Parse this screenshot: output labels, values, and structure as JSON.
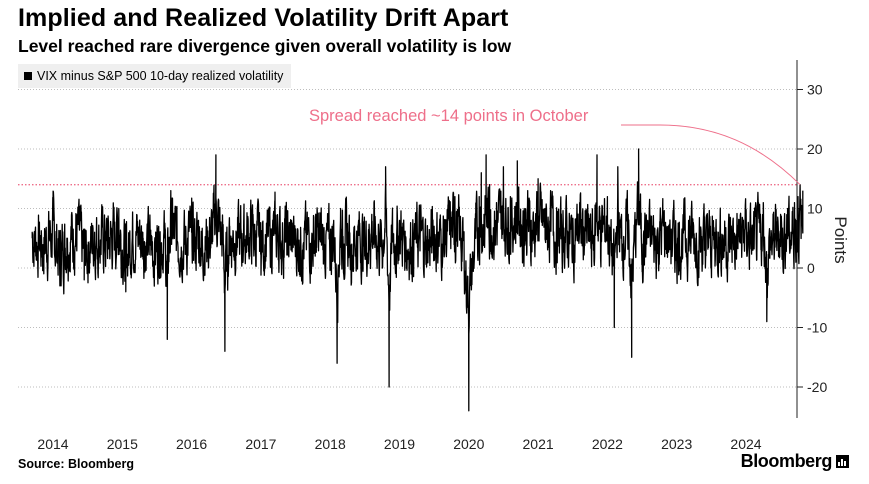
{
  "chart_data": {
    "type": "line",
    "title": "Implied and Realized Volatility Drift Apart",
    "subtitle": "Level reached rare divergence given overall volatility is low",
    "ylabel": "Points",
    "xlabel": "",
    "ylim": [
      -25,
      35
    ],
    "yticks": [
      30,
      20,
      10,
      0,
      -10,
      -20
    ],
    "xlim": [
      2013.7,
      2024.95
    ],
    "xticks": [
      "2014",
      "2015",
      "2016",
      "2017",
      "2018",
      "2019",
      "2020",
      "2021",
      "2022",
      "2023",
      "2024"
    ],
    "grid": "horizontal dotted",
    "legend": {
      "placement": "top-left"
    },
    "series": [
      {
        "name": "VIX minus S&P 500 10-day realized volatility",
        "color": "#000000",
        "x": [
          2013.7,
          2013.85,
          2014.0,
          2014.1,
          2014.2,
          2014.35,
          2014.45,
          2014.6,
          2014.8,
          2014.95,
          2015.0,
          2015.05,
          2015.1,
          2015.15,
          2015.3,
          2015.45,
          2015.6,
          2015.65,
          2015.7,
          2015.75,
          2015.9,
          2016.0,
          2016.05,
          2016.1,
          2016.15,
          2016.3,
          2016.35,
          2016.45,
          2016.48,
          2016.55,
          2016.7,
          2016.85,
          2017.0,
          2017.2,
          2017.4,
          2017.6,
          2017.8,
          2018.0,
          2018.05,
          2018.1,
          2018.15,
          2018.2,
          2018.25,
          2018.3,
          2018.4,
          2018.5,
          2018.6,
          2018.75,
          2018.8,
          2018.85,
          2018.9,
          2018.95,
          2019.0,
          2019.1,
          2019.3,
          2019.4,
          2019.5,
          2019.6,
          2019.7,
          2019.8,
          2019.9,
          2020.0,
          2020.1,
          2020.15,
          2020.18,
          2020.22,
          2020.25,
          2020.3,
          2020.4,
          2020.5,
          2020.6,
          2020.7,
          2020.8,
          2020.85,
          2020.9,
          2021.0,
          2021.1,
          2021.2,
          2021.3,
          2021.4,
          2021.5,
          2021.6,
          2021.7,
          2021.8,
          2021.85,
          2021.9,
          2022.0,
          2022.1,
          2022.15,
          2022.2,
          2022.3,
          2022.35,
          2022.4,
          2022.45,
          2022.5,
          2022.6,
          2022.7,
          2022.8,
          2022.9,
          2023.0,
          2023.2,
          2023.4,
          2023.6,
          2023.8,
          2024.0,
          2024.1,
          2024.2,
          2024.25,
          2024.3,
          2024.35,
          2024.4,
          2024.5,
          2024.55,
          2024.6,
          2024.65,
          2024.7,
          2024.72,
          2024.75,
          2024.78,
          2024.8,
          2024.82
        ],
        "y": [
          6,
          2,
          8,
          -3,
          5,
          9,
          -2,
          6,
          4,
          10,
          3,
          -4,
          2,
          8,
          5,
          1,
          6,
          -12,
          13,
          7,
          4,
          6,
          3,
          8,
          2,
          7,
          19,
          4,
          -14,
          7,
          5,
          8,
          4,
          7,
          5,
          3,
          6,
          2,
          8,
          -16,
          10,
          4,
          6,
          1,
          7,
          3,
          9,
          2,
          17,
          -20,
          6,
          4,
          8,
          3,
          6,
          2,
          7,
          4,
          8,
          12,
          5,
          -24,
          5,
          12,
          16,
          9,
          19,
          14,
          11,
          17,
          12,
          18,
          10,
          13,
          8,
          15,
          10,
          12,
          6,
          9,
          4,
          11,
          7,
          3,
          19,
          8,
          12,
          -10,
          17,
          5,
          9,
          -15,
          6,
          20,
          4,
          7,
          3,
          9,
          5,
          4,
          7,
          3,
          6,
          4,
          8,
          3,
          6,
          11,
          -9,
          3,
          5,
          9,
          5,
          10,
          6,
          11,
          8,
          12,
          14,
          9,
          13
        ]
      }
    ],
    "reference_line": {
      "y": 14,
      "color": "#ee6f8a",
      "style": "dotted"
    },
    "annotations": [
      {
        "text": "Spread reached ~14 points in October",
        "x": 2024.78,
        "y": 14,
        "color": "#ee6f8a"
      }
    ],
    "source": "Source: Bloomberg",
    "logo": "Bloomberg"
  }
}
